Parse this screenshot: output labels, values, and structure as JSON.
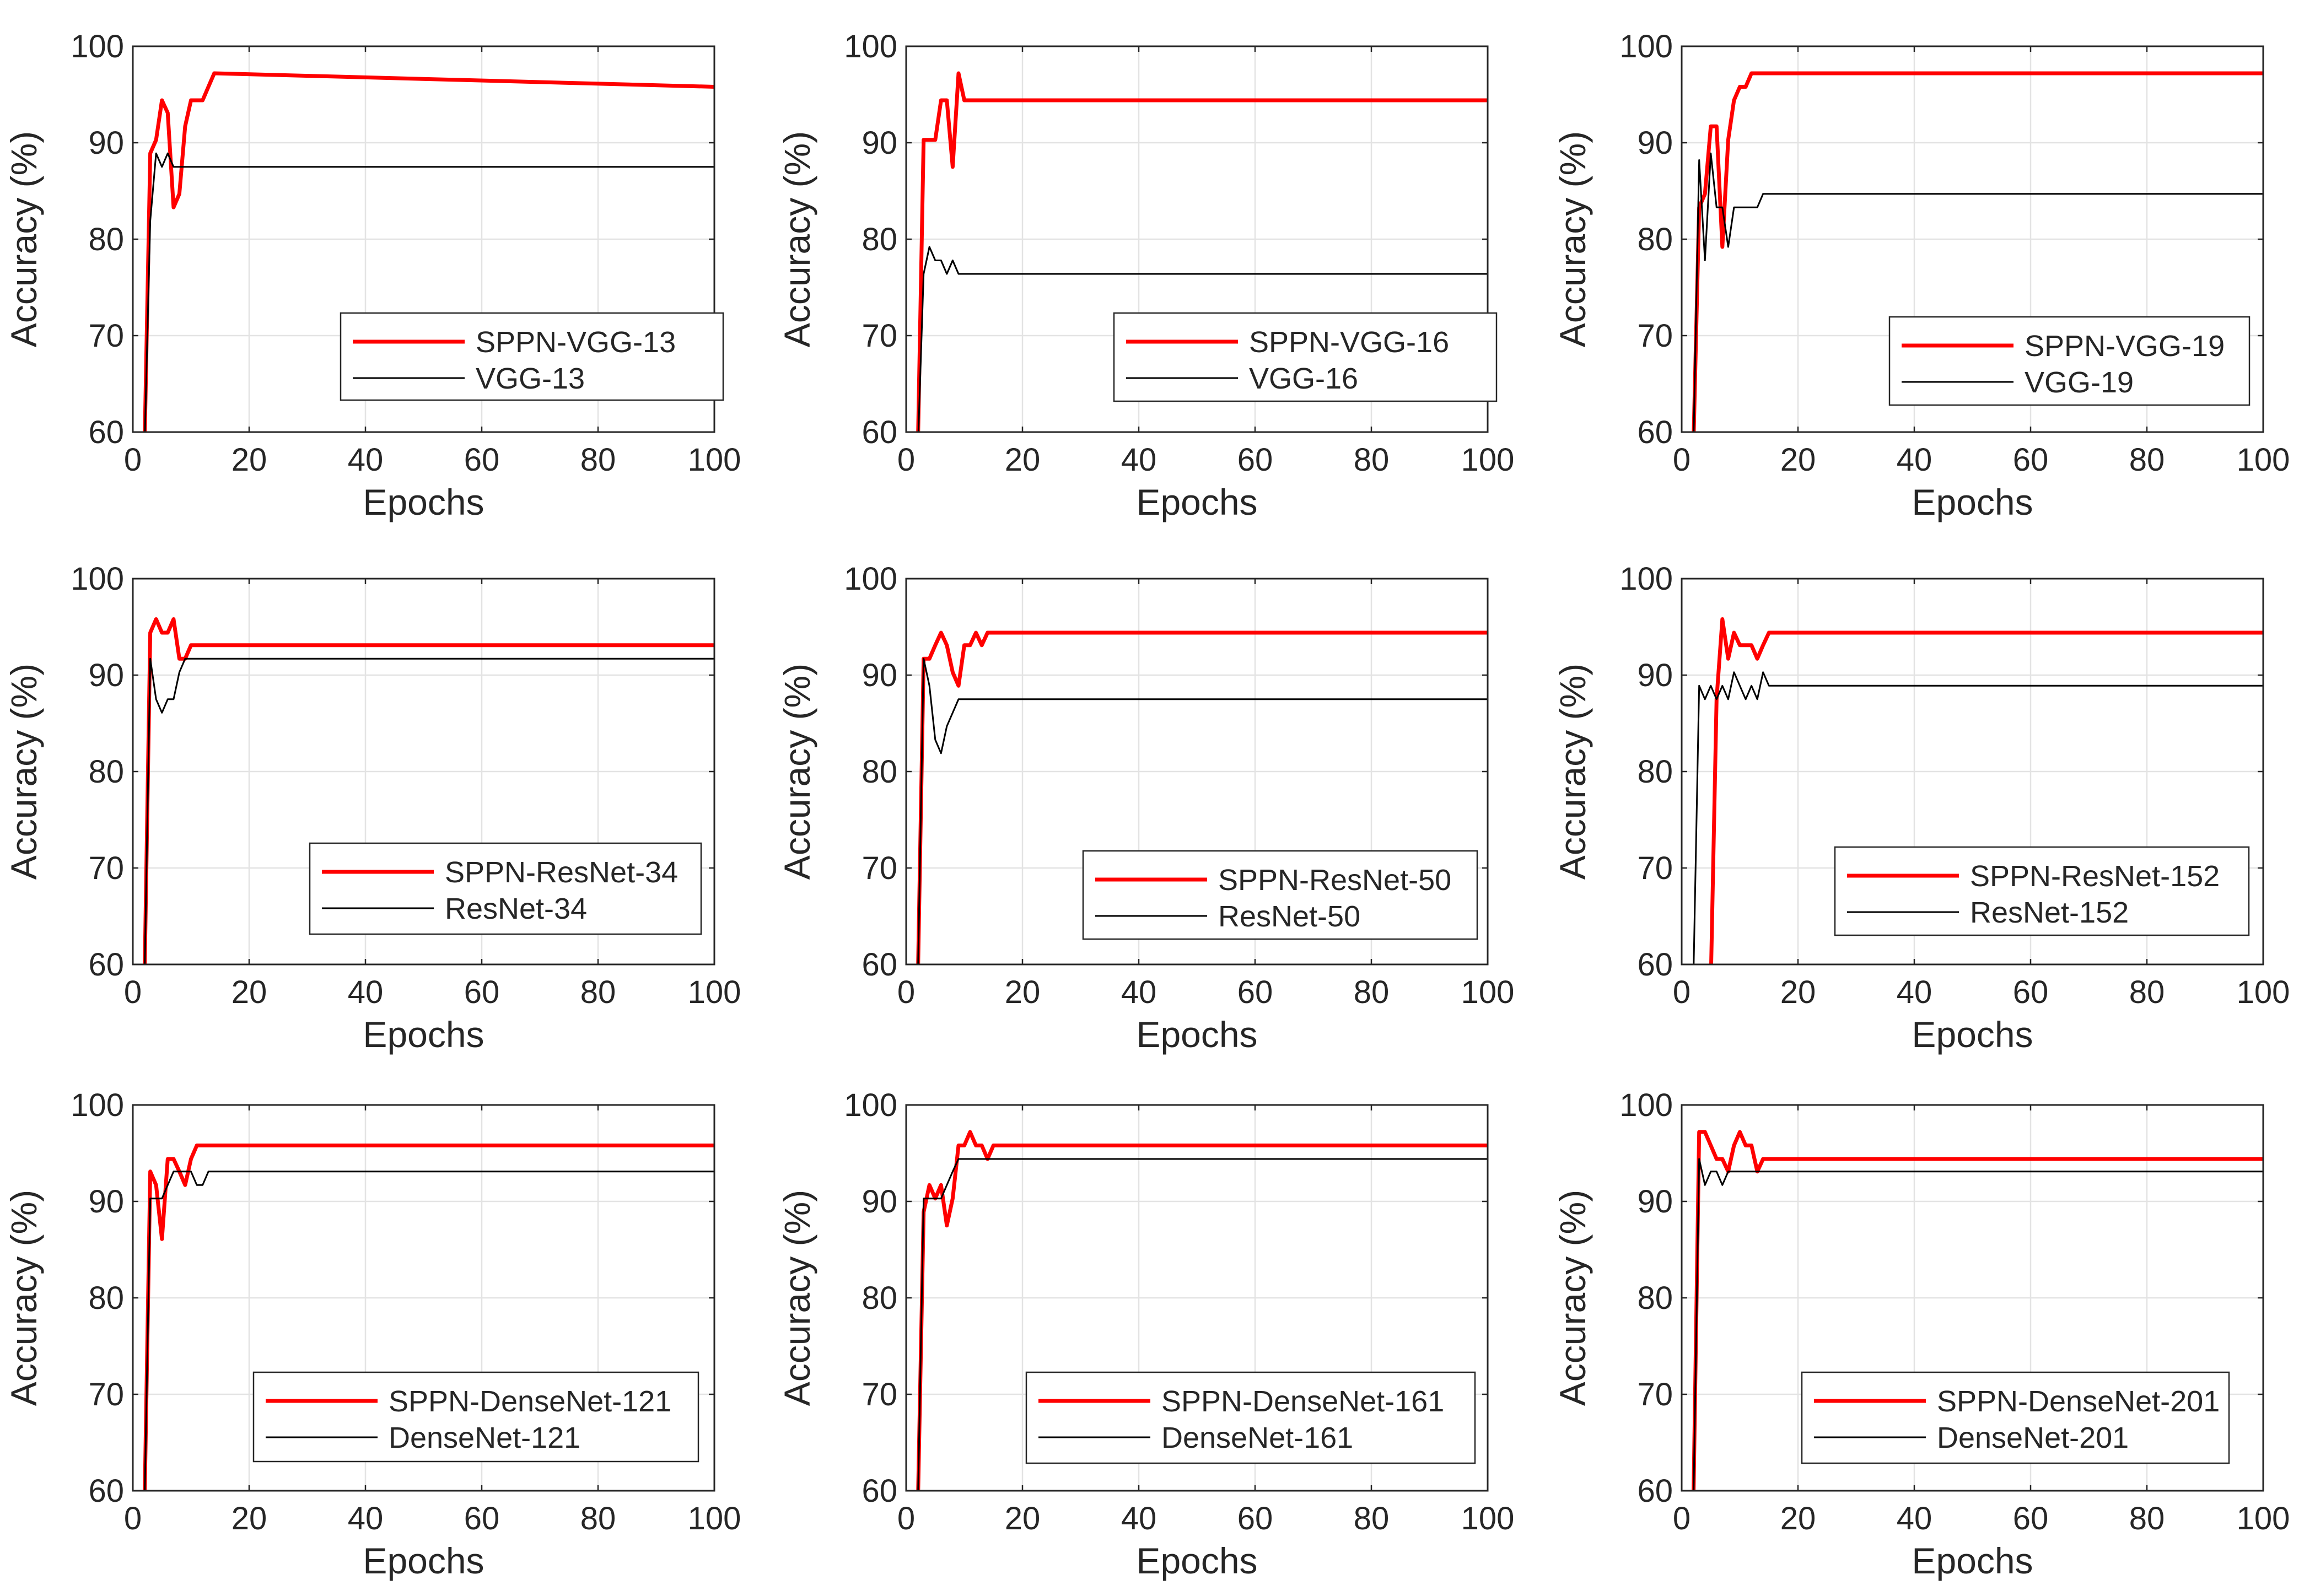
{
  "chart_data": [
    {
      "type": "line",
      "xlabel": "Epochs",
      "ylabel": "Accuracy (%)",
      "xlim": [
        0,
        100
      ],
      "ylim": [
        60,
        100
      ],
      "xticks": [
        "0",
        "20",
        "40",
        "60",
        "80",
        "100"
      ],
      "yticks": [
        "60",
        "70",
        "80",
        "90",
        "100"
      ],
      "grid": true,
      "legend": "bottom-right",
      "series": [
        {
          "name": "SPPN-VGG-13",
          "color": "#ff0000",
          "x": [
            2,
            3,
            4,
            5,
            6,
            7,
            8,
            9,
            10,
            11,
            12,
            13,
            14,
            100
          ],
          "y": [
            58,
            88.9,
            90.3,
            94.4,
            93.1,
            83.3,
            84.7,
            91.7,
            94.4,
            94.4,
            94.4,
            95.8,
            97.2,
            95.8
          ]
        },
        {
          "name": "VGG-13",
          "color": "#000000",
          "x": [
            2,
            3,
            4,
            5,
            6,
            7,
            100
          ],
          "y": [
            58,
            81.9,
            88.9,
            87.5,
            88.9,
            87.5,
            87.5
          ]
        }
      ]
    },
    {
      "type": "line",
      "xlabel": "Epochs",
      "ylabel": "Accuracy (%)",
      "xlim": [
        0,
        100
      ],
      "ylim": [
        60,
        100
      ],
      "xticks": [
        "0",
        "20",
        "40",
        "60",
        "80",
        "100"
      ],
      "yticks": [
        "60",
        "70",
        "80",
        "90",
        "100"
      ],
      "grid": true,
      "legend": "bottom-right",
      "series": [
        {
          "name": "SPPN-VGG-16",
          "color": "#ff0000",
          "x": [
            2,
            3,
            4,
            5,
            6,
            7,
            8,
            9,
            10,
            100
          ],
          "y": [
            58,
            90.3,
            90.3,
            90.3,
            94.4,
            94.4,
            87.5,
            97.2,
            94.4,
            94.4
          ]
        },
        {
          "name": "VGG-16",
          "color": "#000000",
          "x": [
            2,
            3,
            4,
            5,
            6,
            7,
            8,
            9,
            100
          ],
          "y": [
            58,
            76.4,
            79.2,
            77.8,
            77.8,
            76.4,
            77.8,
            76.4,
            76.4
          ]
        }
      ]
    },
    {
      "type": "line",
      "xlabel": "Epochs",
      "ylabel": "Accuracy (%)",
      "xlim": [
        0,
        100
      ],
      "ylim": [
        60,
        100
      ],
      "xticks": [
        "0",
        "20",
        "40",
        "60",
        "80",
        "100"
      ],
      "yticks": [
        "60",
        "70",
        "80",
        "90",
        "100"
      ],
      "grid": true,
      "legend": "bottom-right",
      "series": [
        {
          "name": "SPPN-VGG-19",
          "color": "#ff0000",
          "x": [
            2,
            3,
            4,
            5,
            6,
            7,
            8,
            9,
            10,
            11,
            12,
            100
          ],
          "y": [
            58,
            83.3,
            84.7,
            91.7,
            91.7,
            79.2,
            90.3,
            94.4,
            95.8,
            95.8,
            97.2,
            97.2
          ]
        },
        {
          "name": "VGG-19",
          "color": "#000000",
          "x": [
            2,
            3,
            4,
            5,
            6,
            7,
            8,
            9,
            10,
            11,
            12,
            13,
            14,
            100
          ],
          "y": [
            58,
            88.2,
            77.8,
            88.9,
            83.3,
            83.3,
            79.2,
            83.3,
            83.3,
            83.3,
            83.3,
            83.3,
            84.7,
            84.7
          ]
        }
      ]
    },
    {
      "type": "line",
      "xlabel": "Epochs",
      "ylabel": "Accuracy (%)",
      "xlim": [
        0,
        100
      ],
      "ylim": [
        60,
        100
      ],
      "xticks": [
        "0",
        "20",
        "40",
        "60",
        "80",
        "100"
      ],
      "yticks": [
        "60",
        "70",
        "80",
        "90",
        "100"
      ],
      "grid": true,
      "legend": "bottom-right",
      "series": [
        {
          "name": "SPPN-ResNet-34",
          "color": "#ff0000",
          "x": [
            2,
            3,
            4,
            5,
            6,
            7,
            8,
            9,
            10,
            100
          ],
          "y": [
            58,
            94.4,
            95.8,
            94.4,
            94.4,
            95.8,
            91.7,
            91.7,
            93.1,
            93.1
          ]
        },
        {
          "name": "ResNet-34",
          "color": "#000000",
          "x": [
            2,
            3,
            4,
            5,
            6,
            7,
            8,
            9,
            100
          ],
          "y": [
            58,
            91.7,
            87.5,
            86.1,
            87.5,
            87.5,
            90.3,
            91.7,
            91.7
          ]
        }
      ]
    },
    {
      "type": "line",
      "xlabel": "Epochs",
      "ylabel": "Accuracy (%)",
      "xlim": [
        0,
        100
      ],
      "ylim": [
        60,
        100
      ],
      "xticks": [
        "0",
        "20",
        "40",
        "60",
        "80",
        "100"
      ],
      "yticks": [
        "60",
        "70",
        "80",
        "90",
        "100"
      ],
      "grid": true,
      "legend": "bottom-right",
      "series": [
        {
          "name": "SPPN-ResNet-50",
          "color": "#ff0000",
          "x": [
            2,
            3,
            4,
            5,
            6,
            7,
            8,
            9,
            10,
            11,
            12,
            13,
            14,
            100
          ],
          "y": [
            58,
            91.7,
            91.7,
            93.1,
            94.4,
            93.1,
            90.3,
            88.9,
            93.1,
            93.1,
            94.4,
            93.1,
            94.4,
            94.4
          ]
        },
        {
          "name": "ResNet-50",
          "color": "#000000",
          "x": [
            2,
            3,
            4,
            5,
            6,
            7,
            8,
            9,
            10,
            100
          ],
          "y": [
            58,
            91.7,
            88.9,
            83.3,
            81.9,
            84.7,
            86.1,
            87.5,
            87.5,
            87.5
          ]
        }
      ]
    },
    {
      "type": "line",
      "xlabel": "Epochs",
      "ylabel": "Accuracy (%)",
      "xlim": [
        0,
        100
      ],
      "ylim": [
        60,
        100
      ],
      "xticks": [
        "0",
        "20",
        "40",
        "60",
        "80",
        "100"
      ],
      "yticks": [
        "60",
        "70",
        "80",
        "90",
        "100"
      ],
      "grid": true,
      "legend": "bottom-right",
      "series": [
        {
          "name": "SPPN-ResNet-152",
          "color": "#ff0000",
          "x": [
            5,
            6,
            7,
            8,
            9,
            10,
            11,
            12,
            13,
            14,
            15,
            100
          ],
          "y": [
            58,
            87.5,
            95.8,
            91.7,
            94.4,
            93.1,
            93.1,
            93.1,
            91.7,
            93.1,
            94.4,
            94.4
          ]
        },
        {
          "name": "ResNet-152",
          "color": "#000000",
          "x": [
            2,
            3,
            4,
            5,
            6,
            7,
            8,
            9,
            10,
            11,
            12,
            13,
            14,
            15,
            100
          ],
          "y": [
            58,
            88.9,
            87.5,
            88.9,
            87.5,
            88.9,
            87.5,
            90.3,
            88.9,
            87.5,
            88.9,
            87.5,
            90.3,
            88.9,
            88.9
          ]
        }
      ]
    },
    {
      "type": "line",
      "xlabel": "Epochs",
      "ylabel": "Accuracy (%)",
      "xlim": [
        0,
        100
      ],
      "ylim": [
        60,
        100
      ],
      "xticks": [
        "0",
        "20",
        "40",
        "60",
        "80",
        "100"
      ],
      "yticks": [
        "60",
        "70",
        "80",
        "90",
        "100"
      ],
      "grid": true,
      "legend": "bottom-right",
      "series": [
        {
          "name": "SPPN-DenseNet-121",
          "color": "#ff0000",
          "x": [
            2,
            3,
            4,
            5,
            6,
            7,
            8,
            9,
            10,
            11,
            12,
            100
          ],
          "y": [
            58,
            93.1,
            91.7,
            86.1,
            94.4,
            94.4,
            93.1,
            91.7,
            94.4,
            95.8,
            95.8,
            95.8
          ]
        },
        {
          "name": "DenseNet-121",
          "color": "#000000",
          "x": [
            2,
            3,
            4,
            5,
            6,
            7,
            8,
            9,
            10,
            11,
            12,
            13,
            100
          ],
          "y": [
            58,
            90.3,
            90.3,
            90.3,
            91.7,
            93.1,
            93.1,
            93.1,
            93.1,
            91.7,
            91.7,
            93.1,
            93.1
          ]
        }
      ]
    },
    {
      "type": "line",
      "xlabel": "Epochs",
      "ylabel": "Accuracy (%)",
      "xlim": [
        0,
        100
      ],
      "ylim": [
        60,
        100
      ],
      "xticks": [
        "0",
        "20",
        "40",
        "60",
        "80",
        "100"
      ],
      "yticks": [
        "60",
        "70",
        "80",
        "90",
        "100"
      ],
      "grid": true,
      "legend": "bottom-right",
      "series": [
        {
          "name": "SPPN-DenseNet-161",
          "color": "#ff0000",
          "x": [
            2,
            3,
            4,
            5,
            6,
            7,
            8,
            9,
            10,
            11,
            12,
            13,
            14,
            15,
            100
          ],
          "y": [
            58,
            88.9,
            91.7,
            90.3,
            91.7,
            87.5,
            90.3,
            95.8,
            95.8,
            97.2,
            95.8,
            95.8,
            94.4,
            95.8,
            95.8
          ]
        },
        {
          "name": "DenseNet-161",
          "color": "#000000",
          "x": [
            2,
            3,
            4,
            5,
            6,
            7,
            8,
            9,
            100
          ],
          "y": [
            58,
            90.3,
            90.3,
            90.3,
            90.3,
            91.7,
            93.1,
            94.4,
            94.4
          ]
        }
      ]
    },
    {
      "type": "line",
      "xlabel": "Epochs",
      "ylabel": "Accuracy (%)",
      "xlim": [
        0,
        100
      ],
      "ylim": [
        60,
        100
      ],
      "xticks": [
        "0",
        "20",
        "40",
        "60",
        "80",
        "100"
      ],
      "yticks": [
        "60",
        "70",
        "80",
        "90",
        "100"
      ],
      "grid": true,
      "legend": "bottom-right",
      "series": [
        {
          "name": "SPPN-DenseNet-201",
          "color": "#ff0000",
          "x": [
            2,
            3,
            4,
            5,
            6,
            7,
            8,
            9,
            10,
            11,
            12,
            13,
            14,
            100
          ],
          "y": [
            58,
            97.2,
            97.2,
            95.8,
            94.4,
            94.4,
            93.1,
            95.8,
            97.2,
            95.8,
            95.8,
            93.1,
            94.4,
            94.4
          ]
        },
        {
          "name": "DenseNet-201",
          "color": "#000000",
          "x": [
            2,
            3,
            4,
            5,
            6,
            7,
            8,
            9,
            100
          ],
          "y": [
            58,
            94.4,
            91.7,
            93.1,
            93.1,
            91.7,
            93.1,
            93.1,
            93.1
          ]
        }
      ]
    }
  ]
}
